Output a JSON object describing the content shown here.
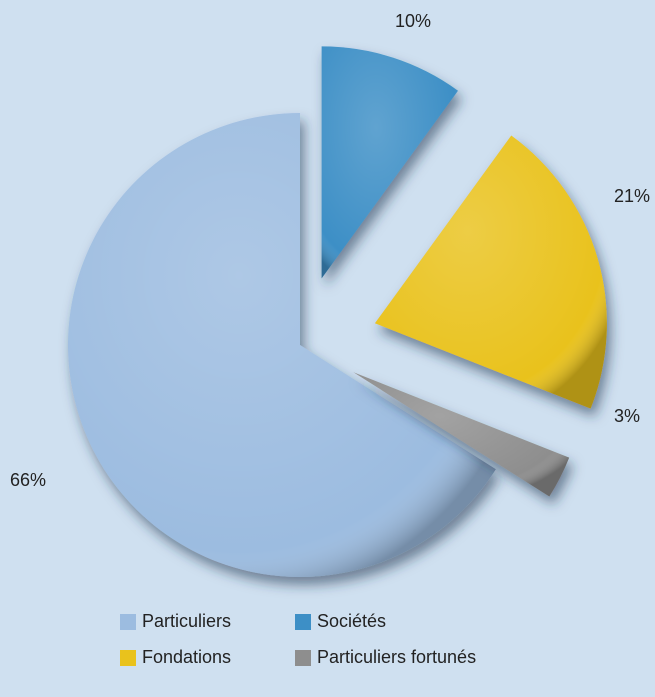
{
  "chart_data": {
    "type": "pie",
    "categories": [
      "Particuliers",
      "Sociétés",
      "Fondations",
      "Particuliers fortunés"
    ],
    "values": [
      66,
      10,
      21,
      3
    ],
    "value_labels": [
      "66%",
      "10%",
      "21%",
      "3%"
    ],
    "colors": [
      "#9cbce0",
      "#3d8fc6",
      "#e9c21c",
      "#8e8e8e"
    ],
    "legend": "bottom"
  }
}
